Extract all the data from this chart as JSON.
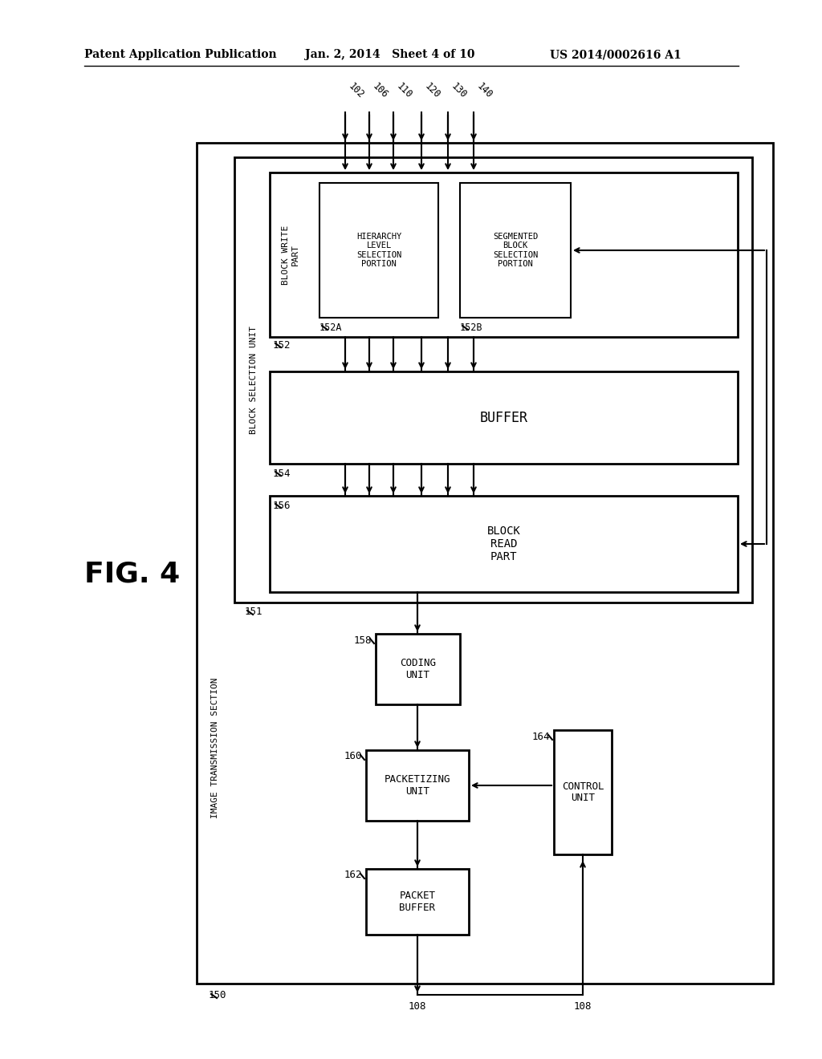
{
  "bg_color": "#ffffff",
  "header_left": "Patent Application Publication",
  "header_mid": "Jan. 2, 2014   Sheet 4 of 10",
  "header_right": "US 2014/0002616 A1",
  "fig_label": "FIG. 4",
  "input_labels": [
    "102",
    "106",
    "110",
    "120",
    "130",
    "140"
  ],
  "output_label": "108",
  "label_150": "150",
  "label_150_text": "IMAGE TRANSMISSION SECTION",
  "label_151": "151",
  "label_151_text": "BLOCK SELECTION UNIT",
  "label_152": "152",
  "label_152_text": "BLOCK WRITE\nPART",
  "label_152A": "152A",
  "label_152A_text": "HIERARCHY\nLEVEL\nSELECTION\nPORTION",
  "label_152B": "152B",
  "label_152B_text": "SEGMENTED\nBLOCK\nSELECTION\nPORTION",
  "label_154": "154",
  "label_154_text": "BUFFER",
  "label_156": "156",
  "label_156_text": "BLOCK\nREAD\nPART",
  "label_158": "158",
  "label_158_text": "CODING\nUNIT",
  "label_160": "160",
  "label_160_text": "PACKETIZING\nUNIT",
  "label_162": "162",
  "label_162_text": "PACKET\nBUFFER",
  "label_164": "164",
  "label_164_text": "CONTROL\nUNIT"
}
